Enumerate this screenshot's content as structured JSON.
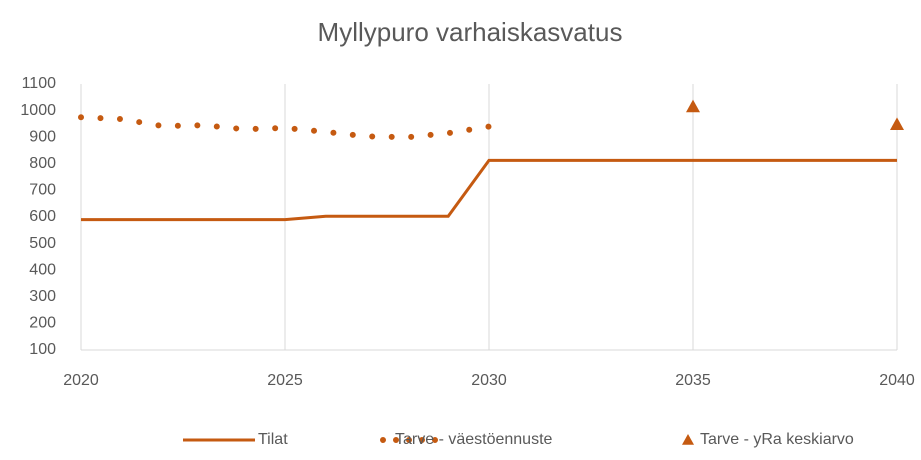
{
  "chart_data": {
    "type": "line",
    "title": "Myllypuro varhaiskasvatus",
    "x": [
      2020,
      2021,
      2022,
      2023,
      2024,
      2025,
      2026,
      2027,
      2028,
      2029,
      2030,
      2031,
      2032,
      2033,
      2034,
      2035,
      2036,
      2037,
      2038,
      2039,
      2040
    ],
    "series": [
      {
        "name": "Tilat",
        "color": "#c55a11",
        "style": "solid",
        "values": [
          590,
          590,
          590,
          590,
          590,
          590,
          603,
          603,
          603,
          603,
          813,
          813,
          813,
          813,
          813,
          813,
          813,
          813,
          813,
          813,
          813
        ]
      },
      {
        "name": "Tarve - väestöennuste",
        "color": "#c55a11",
        "style": "dotted",
        "values": [
          975,
          968,
          942,
          945,
          930,
          935,
          920,
          903,
          900,
          915,
          940,
          null,
          null,
          null,
          null,
          null,
          null,
          null,
          null,
          null,
          null
        ]
      },
      {
        "name": "Tarve - yRa keskiarvo",
        "color": "#c55a11",
        "style": "triangle",
        "values": [
          null,
          null,
          null,
          null,
          null,
          null,
          null,
          null,
          null,
          null,
          null,
          null,
          null,
          null,
          null,
          1015,
          null,
          null,
          null,
          null,
          948
        ]
      }
    ],
    "xlim": [
      2020,
      2040
    ],
    "xticks": [
      2020,
      2025,
      2030,
      2035,
      2040
    ],
    "ylim": [
      100,
      1100
    ],
    "yticks": [
      100,
      200,
      300,
      400,
      500,
      600,
      700,
      800,
      900,
      1000,
      1100
    ],
    "grid": "x",
    "legend": "bottom"
  }
}
